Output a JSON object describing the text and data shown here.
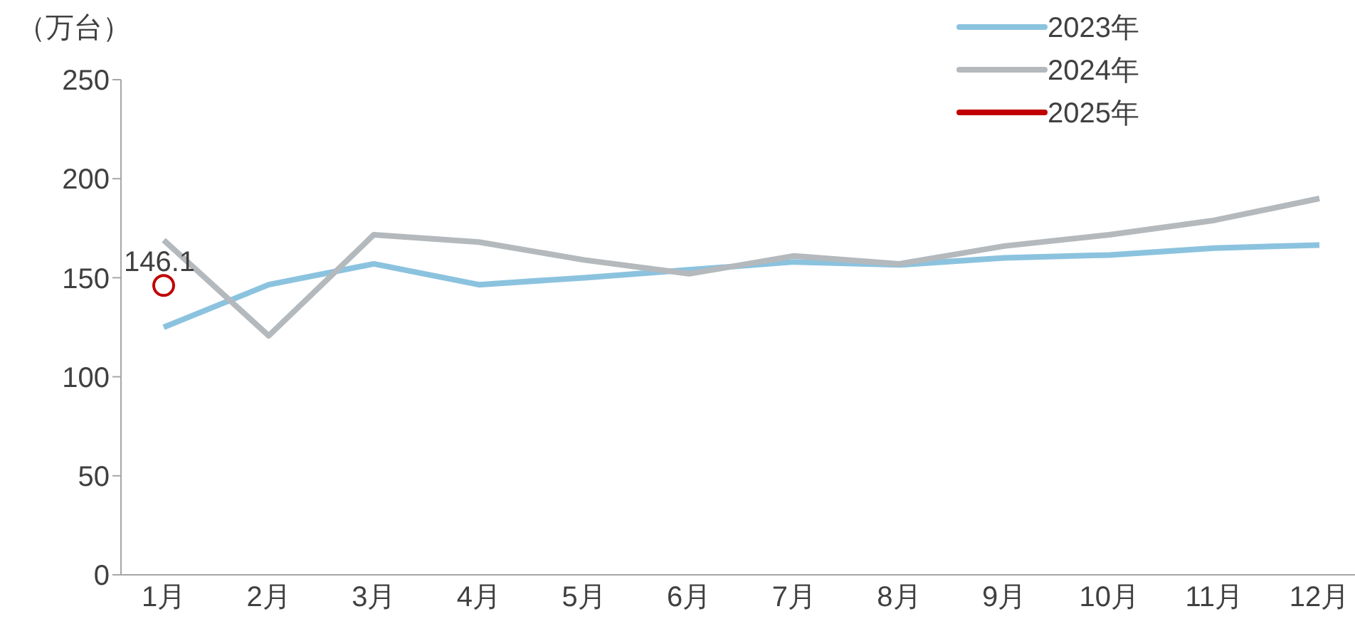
{
  "chart_data": {
    "type": "line",
    "ylabel": "（万台）",
    "categories": [
      "1月",
      "2月",
      "3月",
      "4月",
      "5月",
      "6月",
      "7月",
      "8月",
      "9月",
      "10月",
      "11月",
      "12月"
    ],
    "series": [
      {
        "name": "2023年",
        "color": "#8bc3df",
        "values": [
          125,
          146.5,
          157,
          146.5,
          150,
          154,
          158,
          156.5,
          160,
          161.5,
          165,
          166.5
        ]
      },
      {
        "name": "2024年",
        "color": "#b4b9bd",
        "values": [
          169,
          120.7,
          171.7,
          168,
          159,
          152,
          161,
          157,
          166,
          171.7,
          179,
          190
        ]
      },
      {
        "name": "2025年",
        "color": "#c00000",
        "marker": "circle",
        "values": [
          146.1,
          null,
          null,
          null,
          null,
          null,
          null,
          null,
          null,
          null,
          null,
          null
        ],
        "value_labels": [
          "146.1",
          null,
          null,
          null,
          null,
          null,
          null,
          null,
          null,
          null,
          null,
          null
        ]
      }
    ],
    "ylim": [
      0,
      250
    ],
    "yticks": [
      0,
      50,
      100,
      150,
      200,
      250
    ],
    "grid": false,
    "legend": "top right",
    "marker": "none",
    "line_style": "solid"
  }
}
